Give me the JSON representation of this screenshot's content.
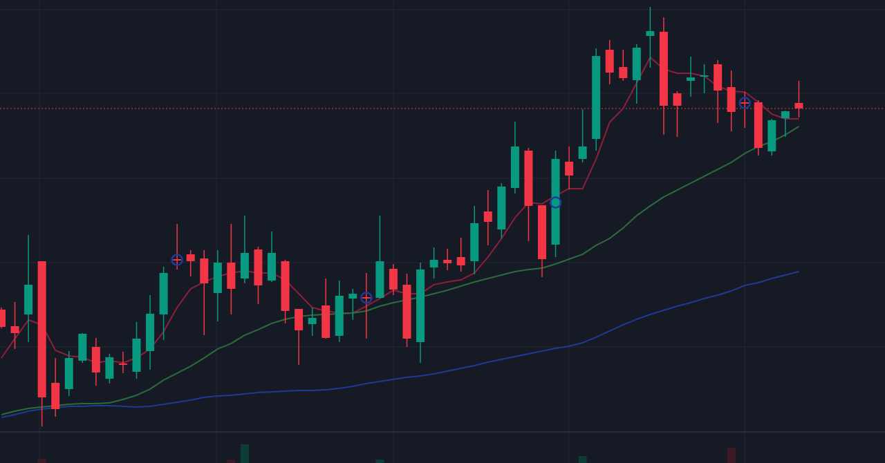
{
  "chart_data": {
    "type": "candlestick",
    "title": "",
    "xlabel": "",
    "ylabel": "",
    "ylim": [
      0,
      67
    ],
    "grid": true,
    "colors": {
      "background": "#161a25",
      "grid": "#232633",
      "up": "#089981",
      "down": "#f23645",
      "ma_fast": "#8e1f3a",
      "ma_mid": "#2e6b3c",
      "ma_slow": "#1e3a99",
      "marker": "#1e3a99",
      "last_price_line": "#f23645"
    },
    "candles": [
      [
        22.2,
        22.5,
        19.5,
        19.7
      ],
      [
        19.8,
        23.3,
        16.5,
        18.8
      ],
      [
        21.5,
        33.0,
        17.5,
        25.8
      ],
      [
        29.2,
        29.2,
        5.3,
        9.5
      ],
      [
        11.6,
        15.2,
        6.7,
        7.8
      ],
      [
        10.7,
        16.2,
        9.7,
        15.2
      ],
      [
        14.8,
        18.8,
        14.5,
        18.7
      ],
      [
        16.8,
        18.1,
        11.2,
        13.1
      ],
      [
        12.2,
        15.8,
        11.5,
        15.3
      ],
      [
        14.4,
        16.1,
        13.0,
        14.3
      ],
      [
        13.2,
        20.4,
        12.2,
        18.0
      ],
      [
        16.2,
        24.3,
        13.5,
        21.6
      ],
      [
        21.5,
        28.4,
        17.8,
        27.5
      ],
      [
        29.5,
        34.6,
        28.0,
        29.3
      ],
      [
        30.2,
        30.8,
        27.0,
        29.2
      ],
      [
        29.6,
        30.8,
        18.5,
        26.0
      ],
      [
        24.6,
        30.8,
        20.5,
        29.0
      ],
      [
        29.0,
        34.6,
        21.5,
        25.2
      ],
      [
        26.7,
        35.8,
        26.0,
        30.4
      ],
      [
        30.9,
        31.3,
        23.0,
        25.7
      ],
      [
        26.4,
        33.5,
        26.2,
        30.4
      ],
      [
        29.2,
        29.4,
        20.2,
        22.0
      ],
      [
        22.3,
        22.3,
        14.2,
        19.2
      ],
      [
        20.1,
        22.5,
        18.4,
        21.0
      ],
      [
        22.8,
        26.7,
        18.0,
        18.1
      ],
      [
        18.4,
        26.4,
        17.5,
        24.2
      ],
      [
        23.8,
        25.2,
        20.7,
        24.5
      ],
      [
        24.0,
        27.5,
        18.0,
        23.9
      ],
      [
        23.9,
        35.8,
        23.8,
        29.2
      ],
      [
        28.1,
        28.8,
        24.3,
        25.1
      ],
      [
        25.8,
        27.4,
        16.8,
        18.0
      ],
      [
        17.5,
        29.0,
        14.5,
        28.0
      ],
      [
        28.3,
        31.2,
        26.7,
        29.4
      ],
      [
        29.4,
        31.0,
        27.9,
        28.9
      ],
      [
        29.8,
        32.6,
        27.7,
        28.6
      ],
      [
        29.2,
        37.2,
        27.3,
        34.7
      ],
      [
        36.4,
        39.5,
        31.5,
        34.9
      ],
      [
        33.8,
        40.5,
        32.5,
        40.0
      ],
      [
        39.8,
        49.4,
        39.0,
        45.8
      ],
      [
        45.2,
        45.6,
        32.1,
        37.2
      ],
      [
        37.3,
        37.3,
        26.9,
        29.5
      ],
      [
        31.6,
        45.2,
        29.8,
        44.0
      ],
      [
        43.6,
        45.8,
        39.6,
        41.6
      ],
      [
        44.0,
        51.2,
        43.5,
        45.8
      ],
      [
        46.9,
        60.0,
        45.2,
        58.9
      ],
      [
        59.8,
        61.2,
        54.8,
        56.5
      ],
      [
        57.3,
        59.8,
        55.3,
        55.7
      ],
      [
        55.4,
        60.6,
        52.0,
        60.1
      ],
      [
        61.8,
        66.0,
        57.2,
        62.5
      ],
      [
        62.4,
        64.5,
        47.5,
        51.7
      ],
      [
        53.5,
        53.8,
        47.2,
        51.7
      ],
      [
        55.3,
        58.8,
        53.0,
        55.8
      ],
      [
        56.0,
        57.7,
        53.5,
        56.1
      ],
      [
        57.7,
        58.3,
        49.2,
        53.9
      ],
      [
        54.4,
        56.8,
        48.0,
        50.8
      ],
      [
        52.2,
        53.7,
        48.5,
        52.1
      ],
      [
        52.2,
        52.5,
        44.5,
        45.6
      ],
      [
        45.1,
        49.8,
        44.5,
        49.6
      ],
      [
        49.9,
        51.0,
        47.2,
        50.9
      ],
      [
        52.1,
        55.3,
        50.0,
        51.3
      ]
    ],
    "series": [
      {
        "values": [
          15.2,
          18.0,
          20.7,
          20.0,
          16.3,
          15.5,
          15.3,
          14.5,
          14.8,
          14.5,
          15.2,
          16.5,
          19.0,
          22.5,
          25.2,
          26.2,
          27.0,
          27.5,
          27.8,
          27.5,
          27.5,
          26.5,
          24.5,
          22.5,
          22.0,
          21.7,
          21.7,
          22.7,
          23.8,
          25.0,
          24.5,
          24.5,
          25.8,
          26.2,
          26.5,
          27.5,
          29.8,
          32.5,
          35.5,
          37.7,
          37.5,
          38.7,
          39.7,
          39.7,
          44.0,
          49.3,
          51.3,
          55.0,
          58.7,
          57.0,
          56.4,
          56.4,
          56.0,
          54.5,
          53.8,
          53.7,
          52.2,
          50.5,
          49.8,
          49.8
        ]
      },
      {
        "values": [
          7.0,
          7.5,
          7.9,
          8.1,
          8.3,
          8.5,
          8.6,
          8.6,
          8.7,
          9.2,
          9.8,
          10.7,
          12.0,
          13.0,
          14.0,
          15.2,
          16.5,
          17.3,
          18.5,
          19.3,
          20.2,
          20.8,
          21.2,
          21.4,
          21.5,
          21.6,
          21.7,
          22.0,
          22.7,
          23.2,
          23.6,
          24.0,
          24.5,
          25.0,
          25.6,
          26.2,
          26.7,
          27.2,
          27.7,
          28.0,
          28.2,
          28.8,
          29.5,
          30.2,
          31.5,
          32.5,
          34.0,
          35.8,
          37.2,
          38.5,
          39.5,
          40.5,
          41.5,
          42.5,
          43.5,
          44.8,
          45.8,
          46.5,
          47.5,
          48.7
        ]
      },
      {
        "values": [
          6.6,
          7.0,
          7.5,
          7.8,
          8.0,
          8.2,
          8.2,
          8.3,
          8.3,
          8.2,
          8.1,
          8.2,
          8.5,
          8.8,
          9.1,
          9.5,
          9.7,
          9.8,
          10.0,
          10.2,
          10.3,
          10.4,
          10.5,
          10.5,
          10.6,
          10.8,
          11.1,
          11.5,
          11.8,
          12.1,
          12.4,
          12.6,
          12.9,
          13.3,
          13.7,
          14.1,
          14.6,
          15.0,
          15.4,
          15.8,
          16.2,
          16.6,
          16.9,
          17.4,
          18.2,
          19.1,
          20.0,
          20.8,
          21.5,
          22.1,
          22.7,
          23.2,
          23.8,
          24.3,
          24.9,
          25.7,
          26.1,
          26.7,
          27.2,
          27.7
        ]
      }
    ],
    "markers": [
      {
        "index": 13,
        "value": 29.4
      },
      {
        "index": 27,
        "value": 23.9
      },
      {
        "index": 41,
        "value": 37.7
      },
      {
        "index": 55,
        "value": 52.1
      }
    ],
    "last_price": 51.3,
    "volume_visible": [
      {
        "index": 3,
        "value": 0.6,
        "dir": "down"
      },
      {
        "index": 17,
        "value": 0.5,
        "dir": "down"
      },
      {
        "index": 18,
        "value": 2.7,
        "dir": "up"
      },
      {
        "index": 28,
        "value": 0.5,
        "dir": "up"
      },
      {
        "index": 43,
        "value": 1.0,
        "dir": "up"
      },
      {
        "index": 54,
        "value": 2.2,
        "dir": "down"
      }
    ]
  }
}
